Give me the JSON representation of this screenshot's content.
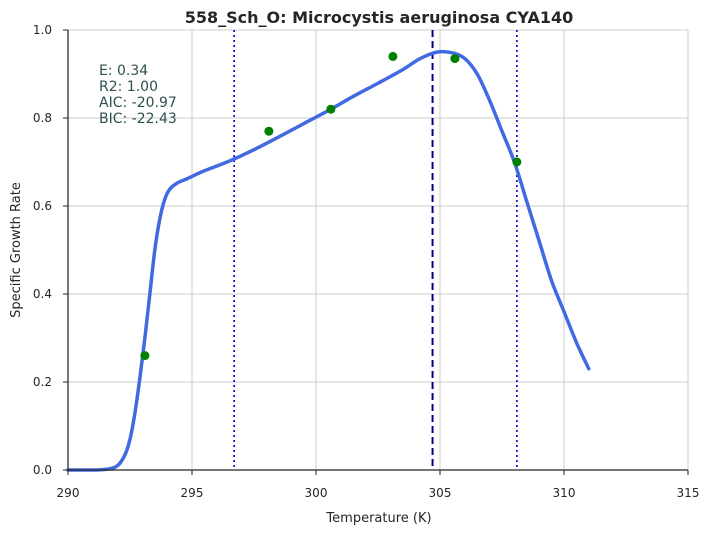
{
  "chart_data": {
    "type": "line",
    "title": "558_Sch_O: Microcystis aeruginosa CYA140",
    "xlabel": "Temperature (K)",
    "ylabel": "Specific Growth Rate",
    "xlim": [
      290,
      315
    ],
    "ylim": [
      0.0,
      1.0
    ],
    "xticks": [
      "290",
      "295",
      "300",
      "305",
      "310",
      "315"
    ],
    "yticks": [
      "0.0",
      "0.2",
      "0.4",
      "0.6",
      "0.8",
      "1.0"
    ],
    "grid": true,
    "stats": [
      "E:  0.34",
      "R2:  1.00",
      "AIC: -20.97",
      "BIC: -22.43"
    ],
    "series": [
      {
        "kind": "fitted-curve",
        "color": "#4169e1",
        "x": [
          290.0,
          291.0,
          291.6,
          292.0,
          292.3,
          292.5,
          292.7,
          292.9,
          293.1,
          293.3,
          293.5,
          293.7,
          293.9,
          294.1,
          294.4,
          294.8,
          295.5,
          296.5,
          297.5,
          298.5,
          299.5,
          300.5,
          301.5,
          302.5,
          303.5,
          304.2,
          304.9,
          305.5,
          306.0,
          306.5,
          307.0,
          307.5,
          308.0,
          308.5,
          309.0,
          309.5,
          310.0,
          310.5,
          311.0
        ],
        "y": [
          0.0,
          0.0,
          0.002,
          0.01,
          0.035,
          0.07,
          0.13,
          0.21,
          0.3,
          0.4,
          0.5,
          0.57,
          0.615,
          0.638,
          0.652,
          0.662,
          0.68,
          0.702,
          0.728,
          0.757,
          0.787,
          0.817,
          0.849,
          0.879,
          0.91,
          0.935,
          0.95,
          0.948,
          0.935,
          0.9,
          0.84,
          0.77,
          0.7,
          0.61,
          0.52,
          0.43,
          0.36,
          0.29,
          0.23
        ]
      },
      {
        "kind": "observed-points",
        "color": "#008000",
        "x": [
          293.1,
          298.1,
          300.6,
          303.1,
          305.6,
          308.1
        ],
        "y": [
          0.26,
          0.77,
          0.82,
          0.94,
          0.935,
          0.7
        ]
      }
    ],
    "vlines": [
      {
        "x": 296.7,
        "style": "dotted",
        "color": "#0000cd"
      },
      {
        "x": 304.7,
        "style": "dashed",
        "color": "#00008b"
      },
      {
        "x": 308.1,
        "style": "dotted",
        "color": "#0000cd"
      }
    ]
  }
}
